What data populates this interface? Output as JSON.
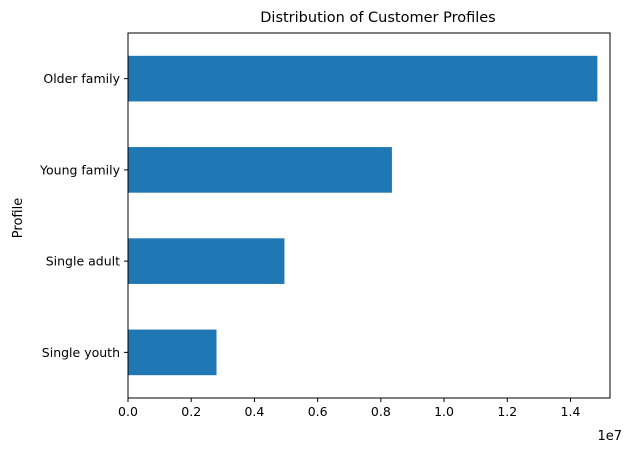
{
  "chart_data": {
    "type": "bar",
    "orientation": "horizontal",
    "title": "Distribution of Customer Profiles",
    "xlabel": "",
    "ylabel": "Profile",
    "x_offset_label": "1e7",
    "x_scale": 10000000,
    "xlim": [
      0,
      15250000
    ],
    "x_ticks": [
      0.0,
      0.2,
      0.4,
      0.6,
      0.8,
      1.0,
      1.2,
      1.4
    ],
    "x_tick_labels": [
      "0.0",
      "0.2",
      "0.4",
      "0.6",
      "0.8",
      "1.0",
      "1.2",
      "1.4"
    ],
    "categories": [
      "Single youth",
      "Single adult",
      "Young family",
      "Older family"
    ],
    "values": [
      2800000,
      4950000,
      8350000,
      14850000
    ],
    "bar_color": "#1f77b4",
    "grid": false,
    "legend": "none"
  }
}
